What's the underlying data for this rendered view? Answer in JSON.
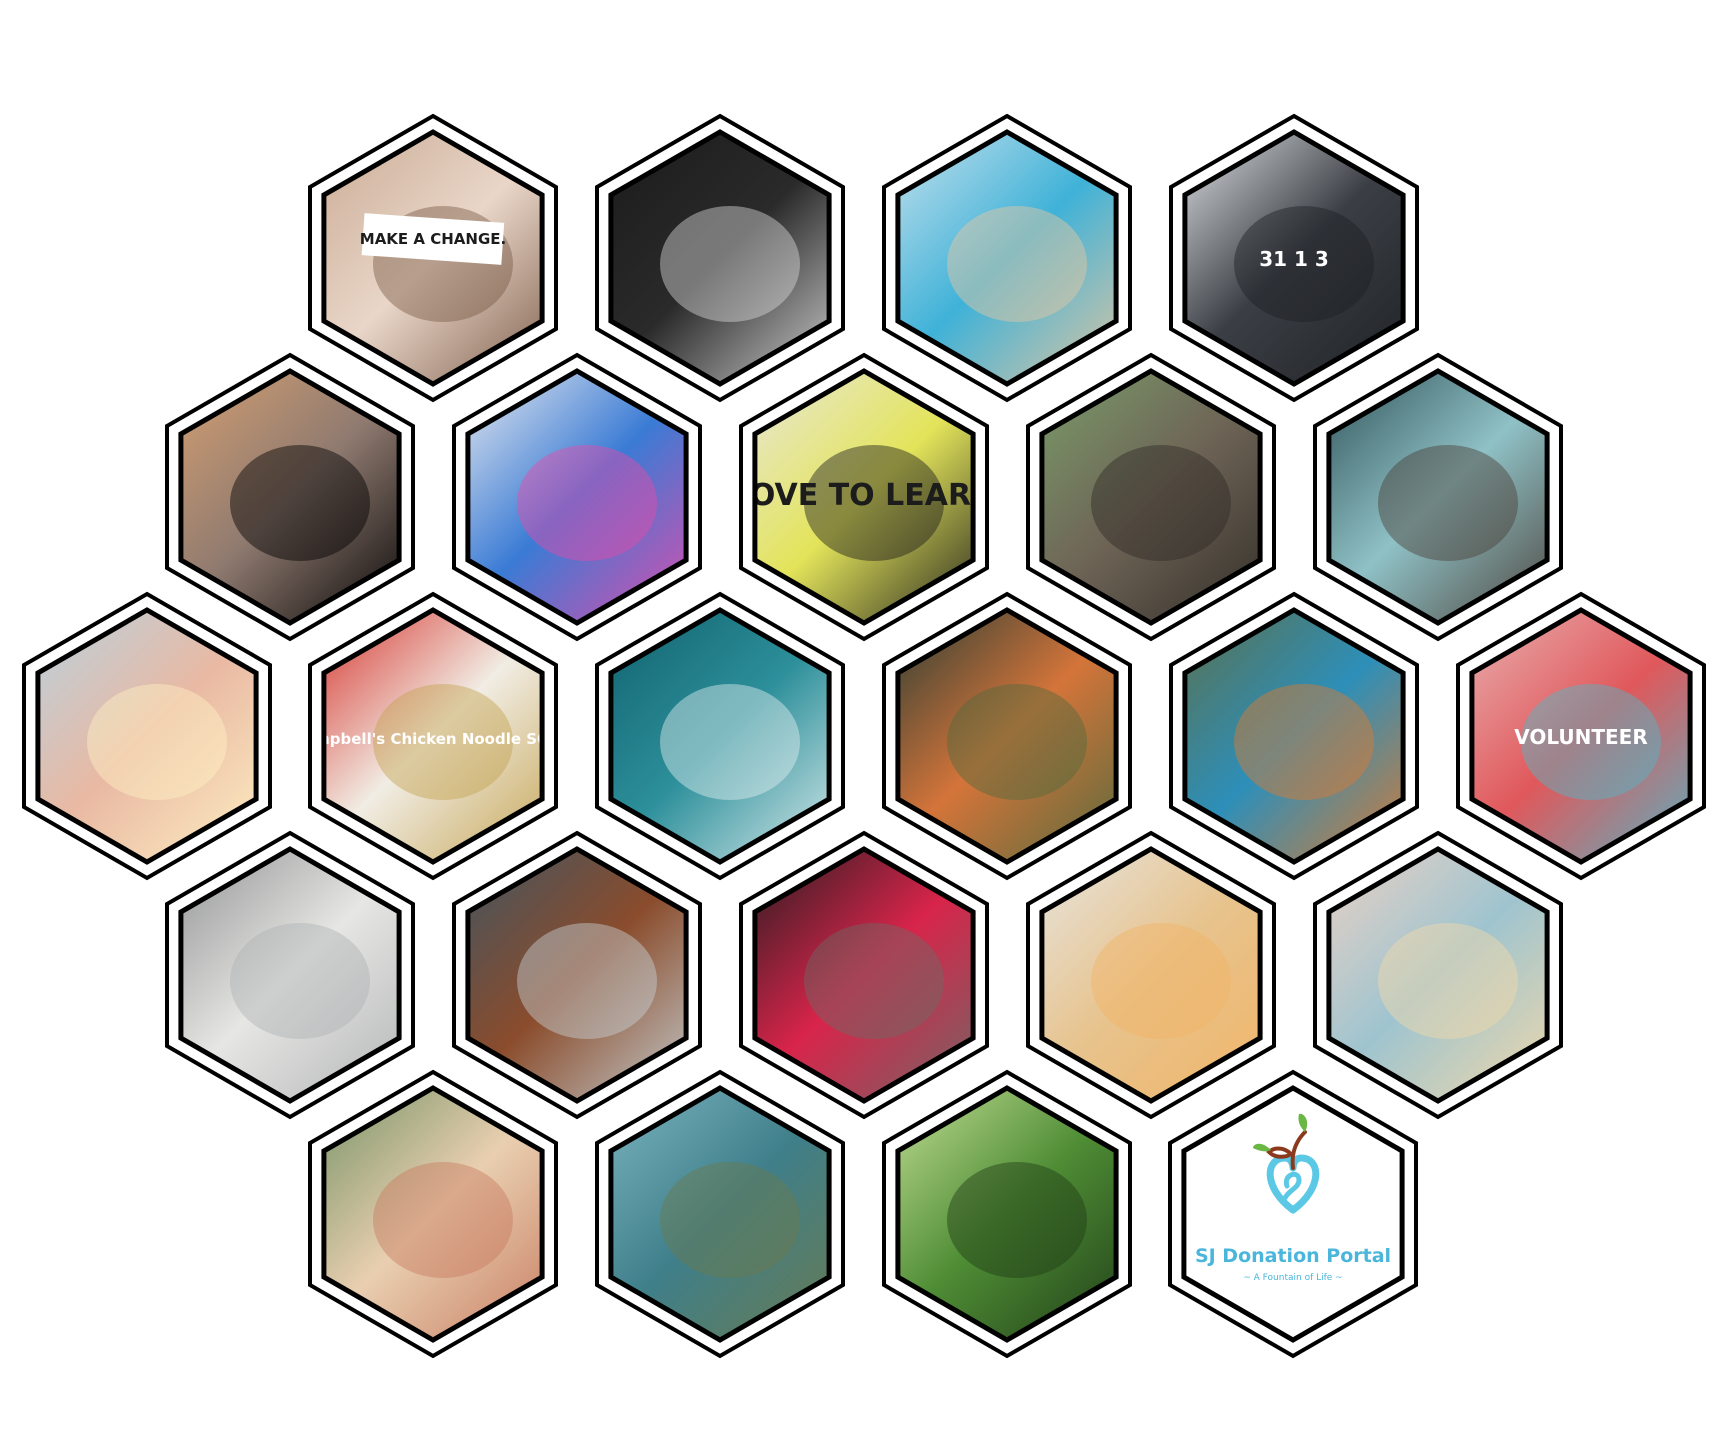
{
  "tiles": [
    {
      "id": "make-a-change",
      "label": "MAKE A CHANGE.",
      "palette": [
        "#c8a891",
        "#e9d6c8",
        "#7b5a47"
      ]
    },
    {
      "id": "fist-bump",
      "label": "",
      "palette": [
        "#1a1a1a",
        "#2a2a2a",
        "#d9d9d9"
      ]
    },
    {
      "id": "volunteer-child",
      "label": "",
      "palette": [
        "#cfe4ee",
        "#3fb2d8",
        "#e9c79f"
      ]
    },
    {
      "id": "computer-lab",
      "label": "31 1 3",
      "palette": [
        "#e9edf0",
        "#3b3f45",
        "#1d2024"
      ]
    },
    {
      "id": "silhouette-reading",
      "label": "",
      "palette": [
        "#d9a272",
        "#8f7a70",
        "#000000"
      ]
    },
    {
      "id": "child-painting",
      "label": "",
      "palette": [
        "#f4f2f0",
        "#3a7bd5",
        "#e84aa8"
      ]
    },
    {
      "id": "love-to-learn",
      "label": "LOVE TO LEARN",
      "palette": [
        "#e9e8e1",
        "#e3e45a",
        "#1c1c1c"
      ]
    },
    {
      "id": "raccoon",
      "label": "",
      "palette": [
        "#7aa06b",
        "#6e6456",
        "#2f2b26"
      ]
    },
    {
      "id": "surgeon",
      "label": "",
      "palette": [
        "#2a4c52",
        "#8fc1c6",
        "#4a3e36"
      ]
    },
    {
      "id": "hands-lights",
      "label": "",
      "palette": [
        "#b6d3e3",
        "#e9b9a3",
        "#fff2c4"
      ]
    },
    {
      "id": "soup-cans",
      "label": "Campbell's Chicken Noodle SOUP",
      "palette": [
        "#d42a25",
        "#f1ede4",
        "#c4a24f"
      ]
    },
    {
      "id": "ocean-waves",
      "label": "",
      "palette": [
        "#0f5f6b",
        "#2c8f9a",
        "#e3f0f0"
      ]
    },
    {
      "id": "autumn-forest",
      "label": "",
      "palette": [
        "#1f3a33",
        "#d4743a",
        "#4f6b3d"
      ]
    },
    {
      "id": "kingfisher",
      "label": "",
      "palette": [
        "#5e6e46",
        "#2d8fb9",
        "#e07a2e"
      ]
    },
    {
      "id": "volunteer-back",
      "label": "VOLUNTEER",
      "palette": [
        "#e9b6b7",
        "#e0585b",
        "#4fb7c8"
      ]
    },
    {
      "id": "elderly-man-mask",
      "label": "",
      "palette": [
        "#8b8d8d",
        "#e6e6e4",
        "#b0b2b3"
      ]
    },
    {
      "id": "violinist",
      "label": "",
      "palette": [
        "#3d5665",
        "#8a4c2c",
        "#c8d3d7"
      ]
    },
    {
      "id": "man-with-dog",
      "label": "",
      "palette": [
        "#1c1c1e",
        "#d8244a",
        "#6c6a66"
      ]
    },
    {
      "id": "smiling-woman",
      "label": "",
      "palette": [
        "#e7e7e5",
        "#e7c38d",
        "#f2b466"
      ]
    },
    {
      "id": "beach-sunset",
      "label": "",
      "palette": [
        "#f0d2c4",
        "#9fc4cf",
        "#f5d9a8"
      ]
    },
    {
      "id": "woman-flowers",
      "label": "",
      "palette": [
        "#6f8f62",
        "#e9cfb0",
        "#c7795f"
      ]
    },
    {
      "id": "sea-turtle",
      "label": "",
      "palette": [
        "#7fb8c4",
        "#3f7f8a",
        "#6a7a4e"
      ]
    },
    {
      "id": "bamboo-forest",
      "label": "",
      "palette": [
        "#c9e39a",
        "#4f8d35",
        "#1e3b17"
      ]
    }
  ],
  "logo": {
    "title": "SJ Donation Portal",
    "tagline": "~ A Fountain of Life ~",
    "colors": {
      "heart": "#5bc8e6",
      "stem": "#8b3a1e",
      "leaf": "#6ab744",
      "text": "#4ab6dc"
    }
  },
  "colors": {
    "frame": "#000000",
    "background": "#ffffff"
  }
}
